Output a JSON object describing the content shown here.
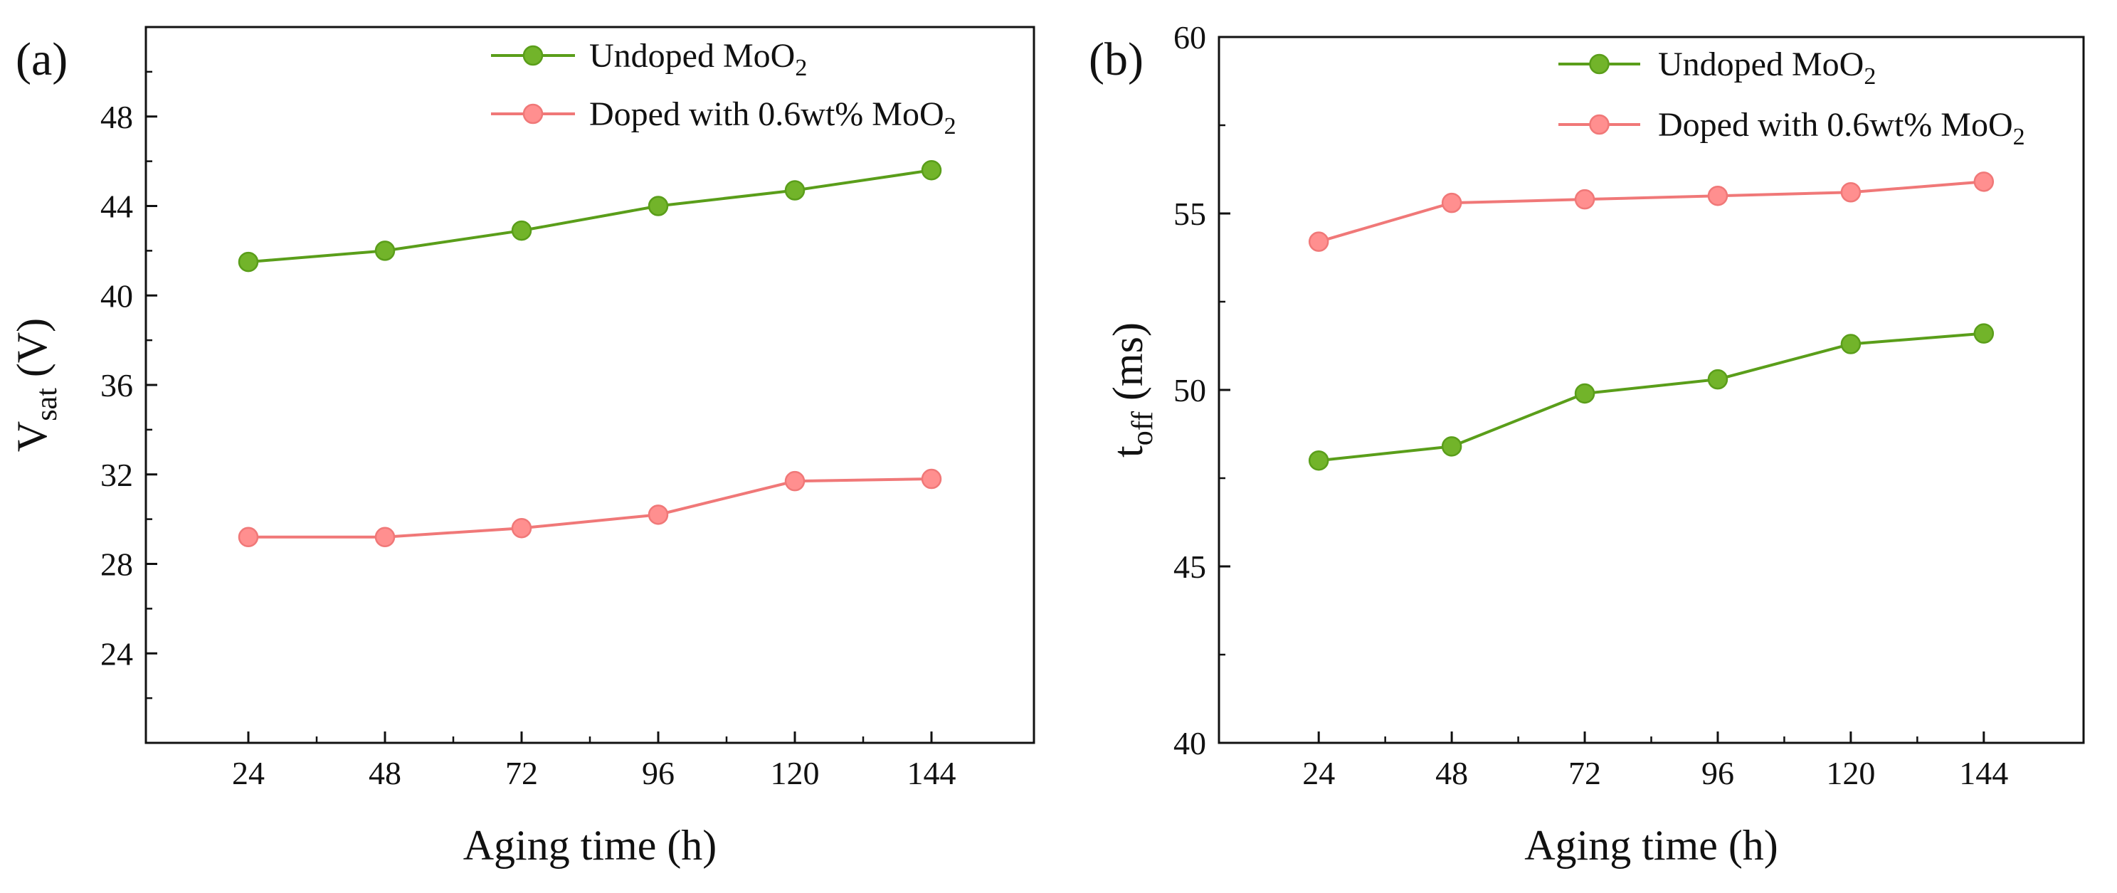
{
  "chart_data": [
    {
      "panel_label": "(a)",
      "type": "line",
      "x": [
        24,
        48,
        72,
        96,
        120,
        144
      ],
      "xlim": [
        6,
        162
      ],
      "ylim": [
        20,
        52
      ],
      "yticks": [
        24,
        28,
        32,
        36,
        40,
        44,
        48
      ],
      "xlabel": "Aging time (h)",
      "ylabel_main": "V",
      "ylabel_sub": "sat",
      "ylabel_unit": " (V)",
      "legend_position": "top-right",
      "series": [
        {
          "name_main": "Undoped MoO",
          "name_sub": "2",
          "name_tail": "",
          "color": "#5a9e1a",
          "marker_fill": "#72b42a",
          "values": [
            41.5,
            42.0,
            42.9,
            44.0,
            44.7,
            45.6
          ]
        },
        {
          "name_main": "Doped with 0.6wt% MoO",
          "name_sub": "2",
          "name_tail": "",
          "color": "#f07878",
          "marker_fill": "#ff8f8f",
          "values": [
            29.2,
            29.2,
            29.6,
            30.2,
            31.7,
            31.8
          ]
        }
      ]
    },
    {
      "panel_label": "(b)",
      "type": "line",
      "x": [
        24,
        48,
        72,
        96,
        120,
        144
      ],
      "xlim": [
        6,
        162
      ],
      "ylim": [
        40,
        60
      ],
      "yticks": [
        40,
        45,
        50,
        55,
        60
      ],
      "xlabel": "Aging time (h)",
      "ylabel_main": "t",
      "ylabel_sub": "off",
      "ylabel_unit": " (ms)",
      "legend_position": "top-right",
      "series": [
        {
          "name_main": "Undoped MoO",
          "name_sub": "2",
          "name_tail": "",
          "color": "#5a9e1a",
          "marker_fill": "#72b42a",
          "values": [
            48.0,
            48.4,
            49.9,
            50.3,
            51.3,
            51.6
          ]
        },
        {
          "name_main": "Doped with 0.6wt% MoO",
          "name_sub": "2",
          "name_tail": "",
          "color": "#f07878",
          "marker_fill": "#ff8f8f",
          "values": [
            54.2,
            55.3,
            55.4,
            55.5,
            55.6,
            55.9
          ]
        }
      ]
    }
  ]
}
